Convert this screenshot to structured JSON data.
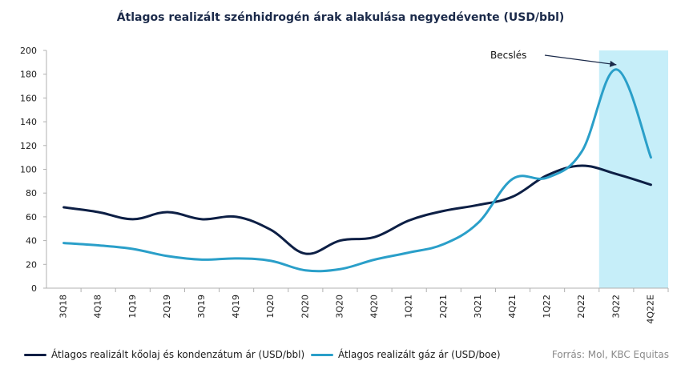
{
  "chart_data": {
    "type": "line",
    "title": "Átlagos realizált szénhidrogén árak alakulása negyedévente  (USD/bbl)",
    "categories": [
      "3Q18",
      "4Q18",
      "1Q19",
      "2Q19",
      "3Q19",
      "4Q19",
      "1Q20",
      "2Q20",
      "3Q20",
      "4Q20",
      "1Q21",
      "2Q21",
      "3Q21",
      "4Q21",
      "1Q22",
      "2Q22",
      "3Q22",
      "4Q22E"
    ],
    "ylim": [
      0,
      200
    ],
    "yticks": [
      0,
      20,
      40,
      60,
      80,
      100,
      120,
      140,
      160,
      180,
      200
    ],
    "series": [
      {
        "name": "Átlagos realizált kőolaj és kondenzátum ár (USD/bbl)",
        "color": "#0d1f45",
        "values": [
          68,
          64,
          58,
          64,
          58,
          60,
          49,
          29,
          40,
          43,
          57,
          65,
          70,
          77,
          95,
          103,
          96,
          87
        ]
      },
      {
        "name": "Átlagos realizált gáz ár (USD/boe)",
        "color": "#2a9fc9",
        "values": [
          38,
          36,
          33,
          27,
          24,
          25,
          23,
          15,
          16,
          24,
          30,
          37,
          55,
          92,
          93,
          115,
          184,
          110
        ]
      }
    ],
    "estimate_region": {
      "from_category": "3Q22",
      "to_category": "4Q22E",
      "color": "#c6eef9"
    },
    "annotation": {
      "text": "Becslés",
      "target_category": "3Q22",
      "target_value": 190
    },
    "grid": false,
    "legend_position": "bottom-left"
  },
  "source": "Forrás: Mol, KBC Equitas"
}
